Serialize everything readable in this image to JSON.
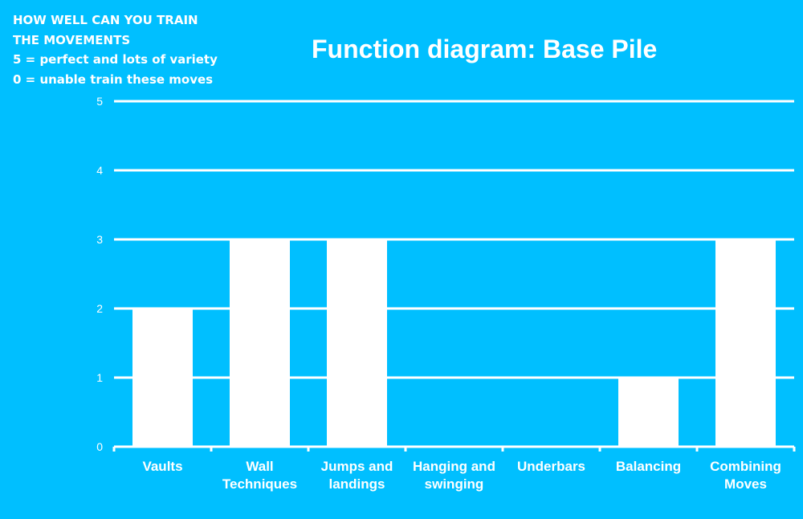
{
  "note_lines": [
    "HOW WELL CAN YOU TRAIN",
    "THE MOVEMENTS",
    "5 = perfect and lots of variety",
    "0 = unable train these moves"
  ],
  "colors": {
    "background": "#00BFFF",
    "bars": "#FFFFFF",
    "grid": "#FFFFFF"
  },
  "chart_data": {
    "type": "bar",
    "title": "Function diagram: Base Pile",
    "categories": [
      [
        "Vaults"
      ],
      [
        "Wall",
        "Techniques"
      ],
      [
        "Jumps and",
        "landings"
      ],
      [
        "Hanging and",
        "swinging"
      ],
      [
        "Underbars"
      ],
      [
        "Balancing"
      ],
      [
        "Combining",
        "Moves"
      ]
    ],
    "values": [
      2,
      3,
      3,
      0,
      0,
      1,
      3
    ],
    "ylim": [
      0,
      5
    ],
    "yticks": [
      "0",
      "1",
      "2",
      "3",
      "4",
      "5"
    ],
    "grid": true,
    "xlabel": "",
    "ylabel": ""
  }
}
